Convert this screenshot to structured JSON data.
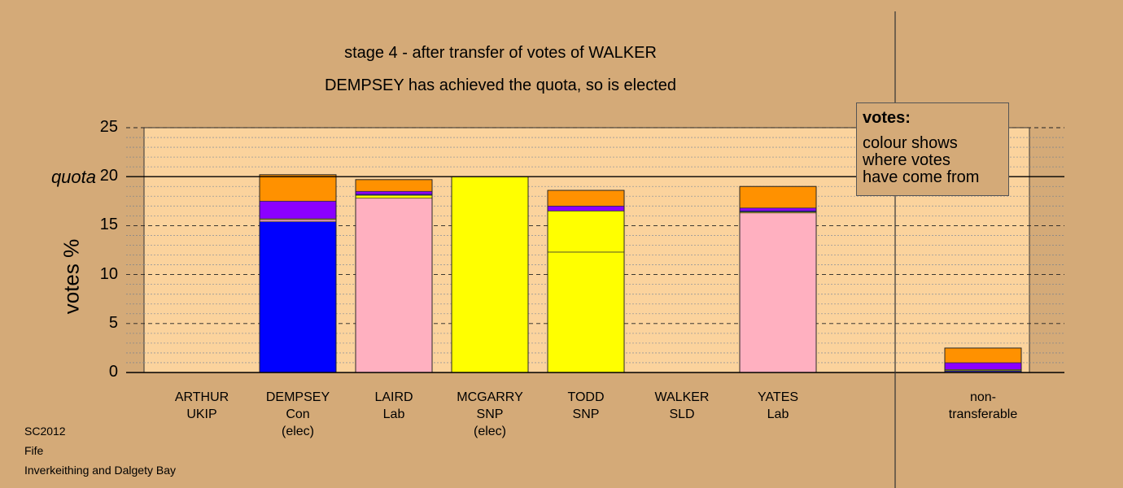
{
  "titles": {
    "line1": "stage 4 - after transfer of votes of WALKER",
    "line2": "DEMPSEY has achieved the quota, so is elected"
  },
  "legend": {
    "heading": "votes:",
    "text": "colour shows\nwhere votes\nhave come from"
  },
  "footer": {
    "line1": "SC2012",
    "line2": "Fife",
    "line3": "Inverkeithing and Dalgety Bay"
  },
  "chart_data": {
    "type": "bar",
    "stacked": true,
    "ylabel": "votes %",
    "ylim": [
      0,
      25
    ],
    "yticks": [
      0,
      5,
      10,
      15,
      20,
      25
    ],
    "quota": 20,
    "quota_label": "quota",
    "colors": {
      "background": "#d4aa78",
      "plot_area": "#fbd39d",
      "Con": "#0000ff",
      "SNP": "#ffff00",
      "Lab": "#ffb0c0",
      "SLD": "#ff9100",
      "UKIP": "#8b00ff"
    },
    "candidates": [
      {
        "name": "ARTHUR",
        "party": "UKIP",
        "note": "",
        "segments": []
      },
      {
        "name": "DEMPSEY",
        "party": "Con",
        "note": "(elec)",
        "segments": [
          {
            "from": "Con",
            "value": 15.4
          },
          {
            "from": "Lab",
            "value": 0.2
          },
          {
            "from": "SNP",
            "value": 0.1
          },
          {
            "from": "UKIP",
            "value": 1.8
          },
          {
            "from": "SLD",
            "value": 2.7
          }
        ]
      },
      {
        "name": "LAIRD",
        "party": "Lab",
        "note": "",
        "segments": [
          {
            "from": "Lab",
            "value": 17.8
          },
          {
            "from": "SNP",
            "value": 0.3
          },
          {
            "from": "Con",
            "value": 0.1
          },
          {
            "from": "UKIP",
            "value": 0.3
          },
          {
            "from": "SLD",
            "value": 1.2
          }
        ]
      },
      {
        "name": "MCGARRY",
        "party": "SNP",
        "note": "(elec)",
        "segments": [
          {
            "from": "SNP",
            "value": 20.0
          }
        ]
      },
      {
        "name": "TODD",
        "party": "SNP",
        "note": "",
        "segments": [
          {
            "from": "SNP",
            "value": 12.3
          },
          {
            "from": "SNP",
            "value": 4.2
          },
          {
            "from": "UKIP",
            "value": 0.5
          },
          {
            "from": "SLD",
            "value": 1.6
          }
        ]
      },
      {
        "name": "WALKER",
        "party": "SLD",
        "note": "",
        "segments": []
      },
      {
        "name": "YATES",
        "party": "Lab",
        "note": "",
        "segments": [
          {
            "from": "Lab",
            "value": 16.3
          },
          {
            "from": "SNP",
            "value": 0.1
          },
          {
            "from": "Con",
            "value": 0.1
          },
          {
            "from": "UKIP",
            "value": 0.3
          },
          {
            "from": "SLD",
            "value": 2.2
          }
        ]
      }
    ],
    "non_transferable": {
      "label1": "non-",
      "label2": "transferable",
      "segments": [
        {
          "from": "Lab",
          "value": 0.1
        },
        {
          "from": "Con",
          "value": 0.1
        },
        {
          "from": "SNP",
          "value": 0.1
        },
        {
          "from": "UKIP",
          "value": 0.7
        },
        {
          "from": "SLD",
          "value": 1.5
        }
      ]
    }
  }
}
